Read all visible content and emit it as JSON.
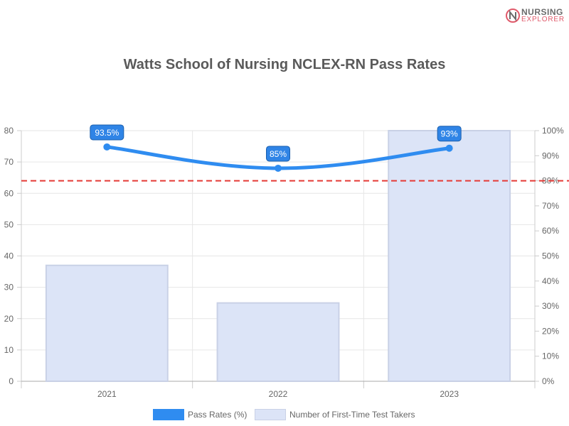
{
  "logo": {
    "line1": "NURSING",
    "line2": "EXPLORER",
    "mark_text": "N",
    "mark_color": "#e05a6b"
  },
  "chart_data": {
    "type": "bar",
    "title": "Watts School of Nursing NCLEX-RN Pass Rates",
    "categories": [
      "2021",
      "2022",
      "2023"
    ],
    "series": [
      {
        "name": "Pass Rates (%)",
        "type": "line",
        "axis": "right",
        "values": [
          93.5,
          85,
          93
        ],
        "labels": [
          "93.5%",
          "85%",
          "93%"
        ],
        "color": "#2f8cf0"
      },
      {
        "name": "Number of First-Time Test Takers",
        "type": "bar",
        "axis": "left",
        "values": [
          37,
          25,
          80
        ],
        "color": "#dce4f7",
        "border_color": "#c9d1e6"
      }
    ],
    "y_left": {
      "min": 0,
      "max": 80,
      "ticks": [
        "0",
        "10",
        "20",
        "30",
        "40",
        "50",
        "60",
        "70",
        "80"
      ]
    },
    "y_right": {
      "min": 0,
      "max": 100,
      "ticks": [
        "0%",
        "10%",
        "20%",
        "30%",
        "40%",
        "50%",
        "60%",
        "70%",
        "80%",
        "90%",
        "100%"
      ]
    },
    "reference_line": {
      "value": 80,
      "axis": "right",
      "color": "#e53935",
      "style": "dashed"
    },
    "grid": true,
    "legend_position": "bottom"
  }
}
